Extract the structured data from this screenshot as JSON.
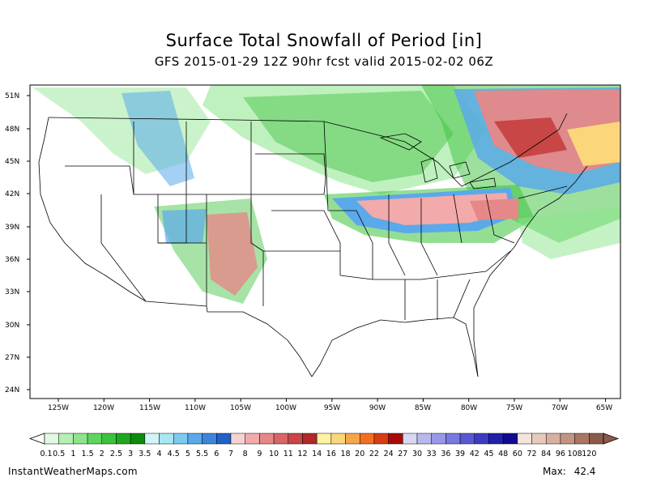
{
  "title": "Surface Total Snowfall of Period [in]",
  "subtitle": "GFS 2015-01-29 12Z 90hr fcst valid 2015-02-02 06Z",
  "map": {
    "lat_labels": [
      "51N",
      "48N",
      "45N",
      "42N",
      "39N",
      "36N",
      "33N",
      "30N",
      "27N",
      "24N"
    ],
    "lon_labels": [
      "125W",
      "120W",
      "115W",
      "110W",
      "105W",
      "100W",
      "95W",
      "90W",
      "85W",
      "80W",
      "75W",
      "70W",
      "65W"
    ]
  },
  "colorbar": {
    "labels": [
      "0.1",
      "0.5",
      "1",
      "1.5",
      "2",
      "2.5",
      "3",
      "3.5",
      "4",
      "4.5",
      "5",
      "5.5",
      "6",
      "7",
      "8",
      "9",
      "10",
      "11",
      "12",
      "14",
      "16",
      "18",
      "20",
      "22",
      "24",
      "27",
      "30",
      "33",
      "36",
      "39",
      "42",
      "45",
      "48",
      "60",
      "72",
      "84",
      "96",
      "108",
      "120"
    ],
    "colors": [
      "#e1f8e1",
      "#b4efb4",
      "#8be58b",
      "#5ed65e",
      "#3cc23c",
      "#20a720",
      "#0c8c0c",
      "#d0f4f8",
      "#a8e6f3",
      "#7dc9f0",
      "#5aa9ea",
      "#3b85dc",
      "#2060c8",
      "#f8d2d2",
      "#f2aaaa",
      "#e68888",
      "#d86666",
      "#c84646",
      "#b02828",
      "#fff2a0",
      "#fbd67a",
      "#f6a64a",
      "#f07020",
      "#d83c10",
      "#a80a0a",
      "#d8d8f5",
      "#b8b8f0",
      "#9898e8",
      "#7878de",
      "#5858d0",
      "#3c3cc0",
      "#2020a8",
      "#140a90",
      "#f5e4dc",
      "#e8cabd",
      "#d8b0a0",
      "#c49383",
      "#ab7565",
      "#8c5a4a"
    ]
  },
  "footer": {
    "site": "InstantWeatherMaps.com",
    "max_label": "Max:",
    "max_value": "42.4"
  }
}
